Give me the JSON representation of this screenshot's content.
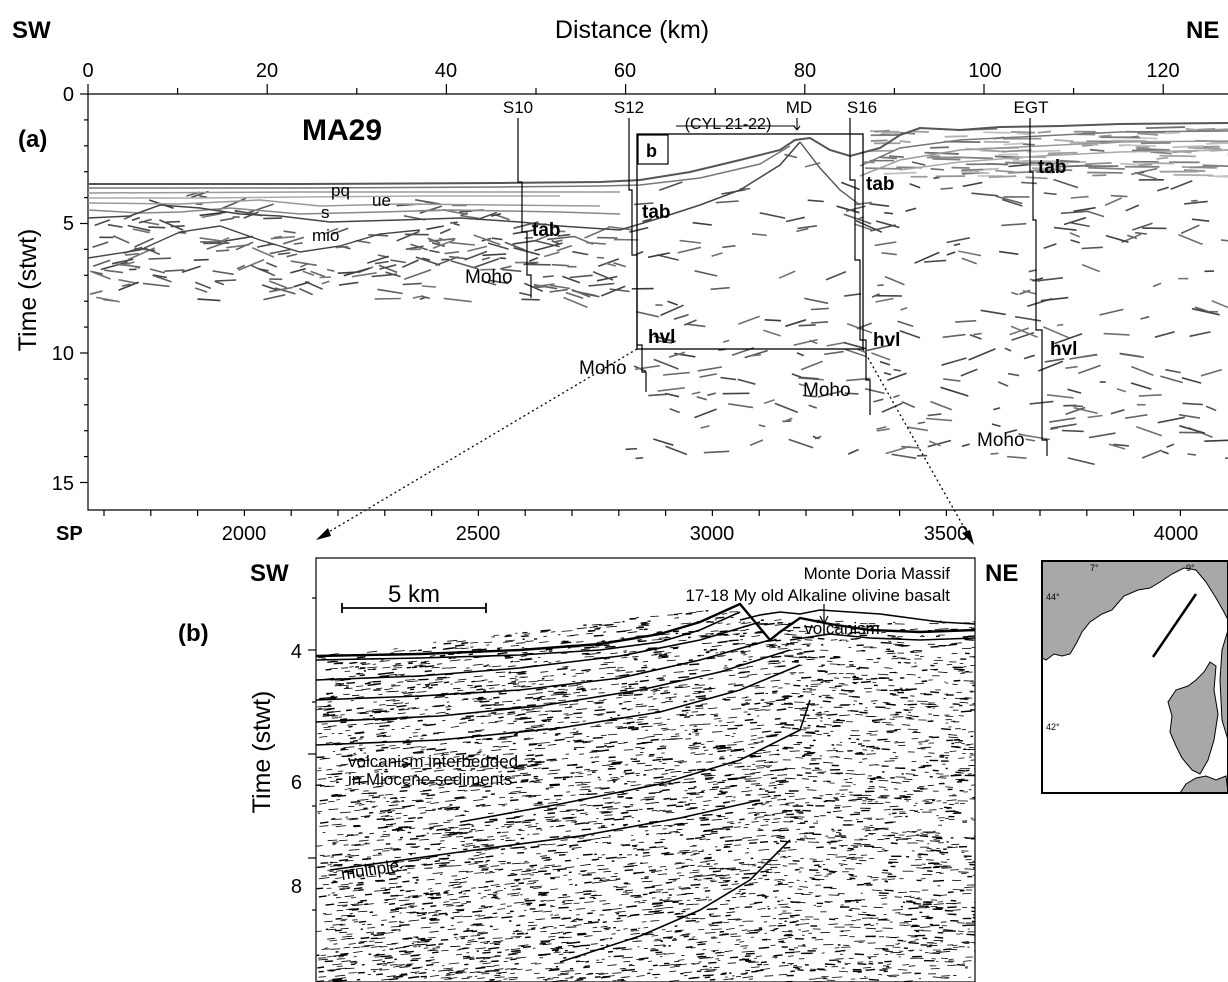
{
  "panel_a": {
    "letter": "(a)",
    "profile_name": "MA29",
    "corner_left": "SW",
    "corner_right": "NE",
    "x_axis_title": "Distance (km)",
    "y_axis_title": "Time (stwt)",
    "sp_label": "SP",
    "x_ticks": [
      "0",
      "20",
      "40",
      "60",
      "80",
      "100",
      "120"
    ],
    "y_ticks": [
      "0",
      "5",
      "10",
      "15"
    ],
    "sp_ticks": [
      "2000",
      "2500",
      "3000",
      "3500",
      "4000"
    ],
    "stations": [
      "S10",
      "S12",
      "MD",
      "S16",
      "EGT"
    ],
    "cyl_label": "(CYL 21-22)",
    "box_label": "b",
    "units": [
      "pq",
      "ue",
      "s",
      "mio"
    ],
    "tab": "tab",
    "hvl": "hvl",
    "moho": "Moho"
  },
  "panel_b": {
    "letter": "(b)",
    "corner_left": "SW",
    "corner_right": "NE",
    "y_axis_title": "Time (stwt)",
    "y_ticks": [
      "4",
      "6",
      "8"
    ],
    "scale_bar": "5 km",
    "massif_line1": "Monte Doria Massif",
    "massif_line2": "17-18 My old Alkaline olivine basalt",
    "volcanism": "volcanism",
    "interbedded_line1": "volcanism interbedded",
    "interbedded_line2": "in Miocene sediments",
    "multiple": "multiple"
  },
  "inset_map": {
    "lon_labels": [
      "7°",
      "9°"
    ],
    "lat_labels": [
      "44°",
      "42°"
    ],
    "land_color": "#a8a8a8"
  }
}
